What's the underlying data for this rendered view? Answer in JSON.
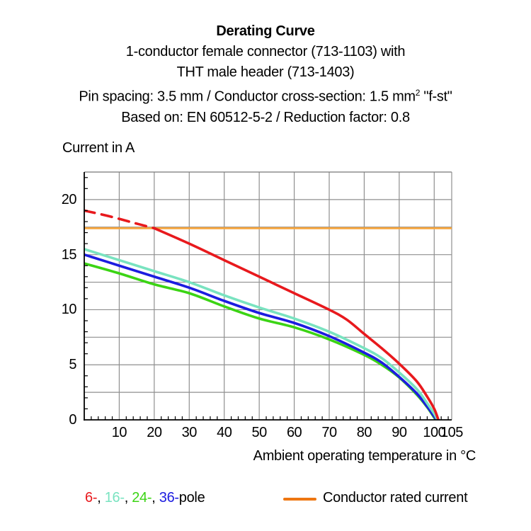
{
  "header": {
    "title": "Derating Curve",
    "line2": "1-conductor female connector (713-1103) with",
    "line3": "THT male header (713-1403)",
    "line4_prefix": "Pin spacing: 3.5 mm / Conductor cross-section: 1.5 mm",
    "line4_sup": "2",
    "line4_suffix": " \"f-st\"",
    "line5": "Based on: EN 60512-5-2 / Reduction factor: 0.8"
  },
  "chart_data": {
    "type": "line",
    "title": "Derating Curve",
    "xlabel": "Ambient operating temperature in °C",
    "ylabel": "Current in A",
    "xlim": [
      0,
      105
    ],
    "ylim": [
      0,
      22.5
    ],
    "x_tick_labels": [
      10,
      20,
      30,
      40,
      50,
      60,
      70,
      80,
      90,
      100,
      105
    ],
    "y_tick_labels": [
      0,
      5,
      10,
      15,
      20
    ],
    "x_grid_step": 10,
    "y_grid_step": 2.5,
    "x_minor_tick_step": 2,
    "y_minor_tick_step": 1,
    "grid_on": true,
    "grid_color": "#8f8f8f",
    "axis_color": "#000000",
    "rated_current": {
      "value": 17.4,
      "color": "#f6a53d",
      "label": "Conductor rated current"
    },
    "series": [
      {
        "name": "24-pole",
        "color": "#3bd414",
        "style": "solid",
        "points": [
          [
            0,
            14.2
          ],
          [
            10,
            13.3
          ],
          [
            20,
            12.3
          ],
          [
            30,
            11.5
          ],
          [
            40,
            10.3
          ],
          [
            50,
            9.2
          ],
          [
            60,
            8.4
          ],
          [
            70,
            7.3
          ],
          [
            80,
            5.9
          ],
          [
            85,
            5.0
          ],
          [
            90,
            3.85
          ],
          [
            95,
            2.3
          ],
          [
            98,
            1.15
          ],
          [
            100,
            0.2
          ],
          [
            100.5,
            0
          ]
        ]
      },
      {
        "name": "36-pole",
        "color": "#1c1ce0",
        "style": "solid",
        "points": [
          [
            0,
            15.0
          ],
          [
            10,
            14.0
          ],
          [
            20,
            13.0
          ],
          [
            30,
            12.0
          ],
          [
            40,
            10.8
          ],
          [
            50,
            9.7
          ],
          [
            60,
            8.8
          ],
          [
            70,
            7.6
          ],
          [
            80,
            6.1
          ],
          [
            85,
            5.2
          ],
          [
            90,
            3.9
          ],
          [
            95,
            2.4
          ],
          [
            98,
            1.2
          ],
          [
            100,
            0.3
          ],
          [
            100.7,
            0
          ]
        ]
      },
      {
        "name": "16-pole",
        "color": "#79e3c0",
        "style": "solid",
        "points": [
          [
            0,
            15.5
          ],
          [
            10,
            14.5
          ],
          [
            20,
            13.5
          ],
          [
            30,
            12.5
          ],
          [
            40,
            11.3
          ],
          [
            50,
            10.2
          ],
          [
            60,
            9.2
          ],
          [
            70,
            8.0
          ],
          [
            80,
            6.5
          ],
          [
            85,
            5.6
          ],
          [
            90,
            4.3
          ],
          [
            95,
            2.8
          ],
          [
            98,
            1.5
          ],
          [
            100,
            0.55
          ],
          [
            100.9,
            0
          ]
        ]
      },
      {
        "name": "6-pole-above-rated",
        "color": "#e8191d",
        "style": "dashed",
        "points": [
          [
            0,
            19.0
          ],
          [
            7,
            18.5
          ],
          [
            14,
            17.9
          ],
          [
            20,
            17.4
          ]
        ]
      },
      {
        "name": "6-pole",
        "color": "#e8191d",
        "style": "solid",
        "points": [
          [
            20,
            17.4
          ],
          [
            30,
            16.0
          ],
          [
            40,
            14.5
          ],
          [
            50,
            13.0
          ],
          [
            60,
            11.5
          ],
          [
            70,
            10.0
          ],
          [
            75,
            9.1
          ],
          [
            80,
            7.8
          ],
          [
            85,
            6.5
          ],
          [
            90,
            5.1
          ],
          [
            95,
            3.5
          ],
          [
            98,
            2.1
          ],
          [
            100,
            1.0
          ],
          [
            101.2,
            0
          ]
        ]
      }
    ]
  },
  "legend": {
    "poles": [
      {
        "label": "6-",
        "color": "#e8191d"
      },
      {
        "label": "16-",
        "color": "#79e3c0"
      },
      {
        "label": "24-",
        "color": "#3bd414"
      },
      {
        "label": "36-",
        "color": "#1c1ce0"
      }
    ],
    "separator": ", ",
    "suffix": "pole",
    "rated": {
      "label": "Conductor rated current",
      "swatch_color": "#ee7611"
    }
  }
}
